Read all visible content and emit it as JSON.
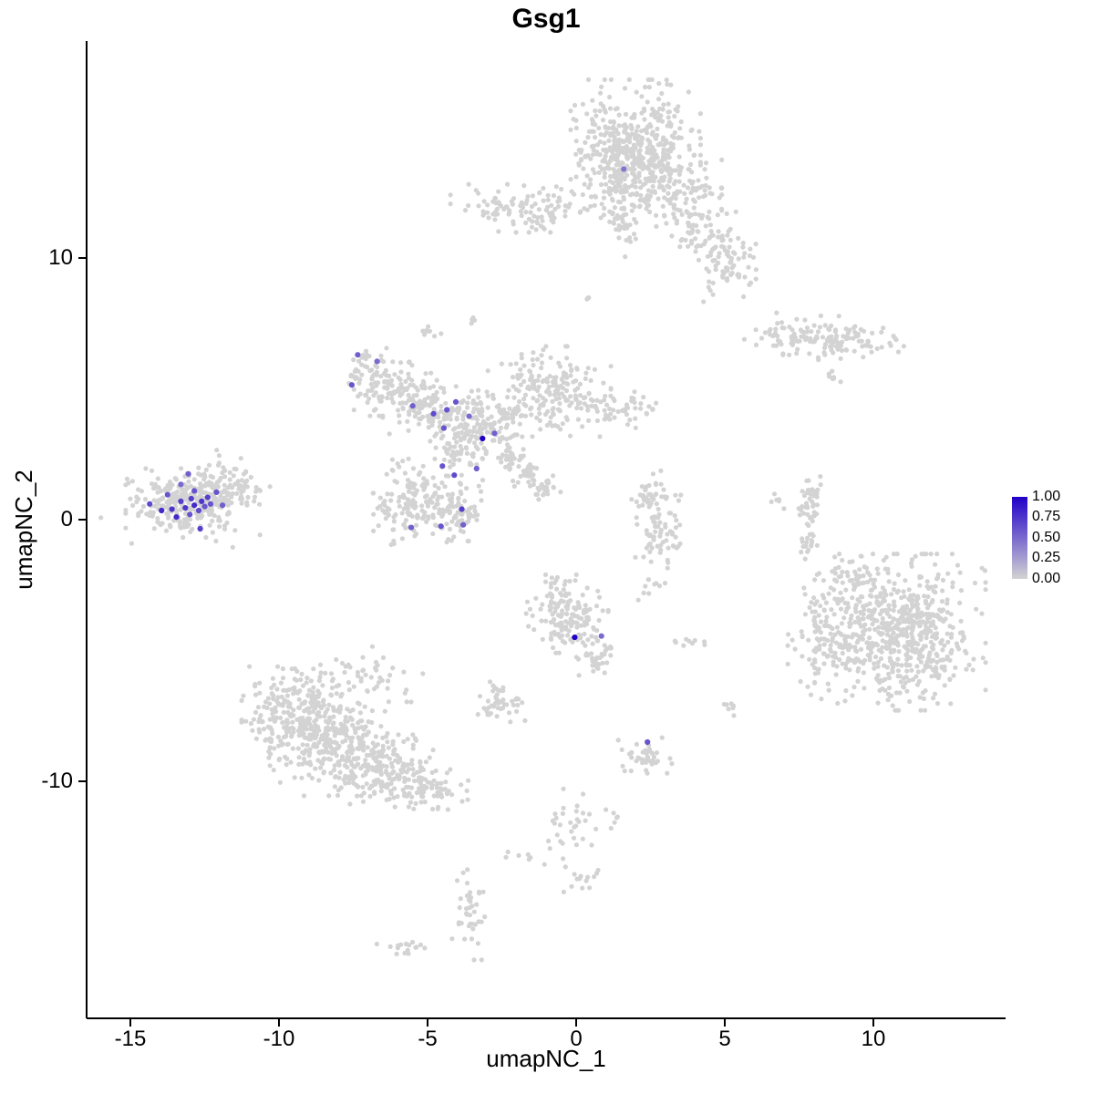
{
  "title": "Gsg1",
  "axes": {
    "x": {
      "label": "umapNC_1",
      "ticks": [
        -15,
        -10,
        -5,
        0,
        5,
        10
      ],
      "tick_labels": [
        "-15",
        "-10",
        "-5",
        "0",
        "5",
        "10"
      ],
      "range": [
        -16.5,
        14.4
      ]
    },
    "y": {
      "label": "umapNC_2",
      "ticks": [
        10,
        0,
        -10
      ],
      "tick_labels": [
        "10",
        "0",
        "-10"
      ],
      "range": [
        -19.1,
        18.3
      ]
    }
  },
  "legend": {
    "labels": [
      "1.00",
      "0.75",
      "0.50",
      "0.25",
      "0.00"
    ],
    "high_color": "#2100c8",
    "low_color": "#d3d3d3"
  },
  "chart_data": {
    "type": "scatter",
    "title": "Gsg1",
    "xlabel": "umapNC_1",
    "ylabel": "umapNC_2",
    "xlim": [
      -16.5,
      14.4
    ],
    "ylim": [
      -19.1,
      18.3
    ],
    "grid": false,
    "legend_position": "right",
    "base_point_color": "#d3d3d3",
    "high_color": "#2100c8",
    "point_radius": 2.6,
    "expressing_point_radius": 3.1,
    "clusters_note": "UMAP background cells approximated as gaussian blobs: cx,cy = cluster center in data coords; sx,sy = spread; n = cell count",
    "clusters": [
      {
        "cx": 2.0,
        "cy": 14.4,
        "sx": 0.95,
        "sy": 1.05,
        "n": 400
      },
      {
        "cx": 2.6,
        "cy": 12.7,
        "sx": 1.0,
        "sy": 0.65,
        "n": 160
      },
      {
        "cx": 4.3,
        "cy": 11.3,
        "sx": 0.5,
        "sy": 0.6,
        "n": 70
      },
      {
        "cx": 5.2,
        "cy": 9.9,
        "sx": 0.5,
        "sy": 0.6,
        "n": 65
      },
      {
        "cx": -1.7,
        "cy": 11.9,
        "sx": 1.1,
        "sy": 0.4,
        "n": 115
      },
      {
        "cx": 1.4,
        "cy": 12.8,
        "sx": 0.4,
        "sy": 0.7,
        "n": 50
      },
      {
        "cx": 1.7,
        "cy": 11.3,
        "sx": 0.25,
        "sy": 0.55,
        "n": 35
      },
      {
        "cx": 7.5,
        "cy": 7.1,
        "sx": 0.8,
        "sy": 0.35,
        "n": 80
      },
      {
        "cx": 9.3,
        "cy": 6.8,
        "sx": 0.75,
        "sy": 0.3,
        "n": 70
      },
      {
        "cx": 8.6,
        "cy": 5.4,
        "sx": 0.15,
        "sy": 0.12,
        "n": 7
      },
      {
        "cx": -7.0,
        "cy": 5.9,
        "sx": 0.35,
        "sy": 0.35,
        "n": 35
      },
      {
        "cx": -6.3,
        "cy": 5.0,
        "sx": 0.7,
        "sy": 0.45,
        "n": 105
      },
      {
        "cx": -4.9,
        "cy": 4.2,
        "sx": 0.7,
        "sy": 0.4,
        "n": 105
      },
      {
        "cx": -3.3,
        "cy": 3.6,
        "sx": 0.7,
        "sy": 0.65,
        "n": 145
      },
      {
        "cx": -0.9,
        "cy": 4.9,
        "sx": 0.9,
        "sy": 0.75,
        "n": 200
      },
      {
        "cx": 1.5,
        "cy": 4.2,
        "sx": 0.7,
        "sy": 0.3,
        "n": 50
      },
      {
        "cx": -2.2,
        "cy": 4.1,
        "sx": 0.3,
        "sy": 0.25,
        "n": 25
      },
      {
        "cx": -2.2,
        "cy": 2.3,
        "sx": 0.25,
        "sy": 0.25,
        "n": 28
      },
      {
        "cx": -1.65,
        "cy": 1.85,
        "sx": 0.25,
        "sy": 0.25,
        "n": 28
      },
      {
        "cx": -1.1,
        "cy": 1.35,
        "sx": 0.25,
        "sy": 0.25,
        "n": 24
      },
      {
        "cx": -4.1,
        "cy": 2.6,
        "sx": 0.3,
        "sy": 0.3,
        "n": 25
      },
      {
        "cx": -5.1,
        "cy": 0.6,
        "sx": 0.85,
        "sy": 0.75,
        "n": 185
      },
      {
        "cx": -3.9,
        "cy": 0.1,
        "sx": 0.4,
        "sy": 0.4,
        "n": 50
      },
      {
        "cx": -5.0,
        "cy": 7.2,
        "sx": 0.2,
        "sy": 0.15,
        "n": 8
      },
      {
        "cx": -13.2,
        "cy": 0.7,
        "sx": 0.85,
        "sy": 0.6,
        "n": 230
      },
      {
        "cx": -11.8,
        "cy": 1.2,
        "sx": 0.65,
        "sy": 0.5,
        "n": 85
      },
      {
        "cx": -13.0,
        "cy": 0.9,
        "sx": 1.3,
        "sy": 0.85,
        "n": 45
      },
      {
        "cx": 2.6,
        "cy": 1.0,
        "sx": 0.4,
        "sy": 0.4,
        "n": 45
      },
      {
        "cx": 2.8,
        "cy": -0.7,
        "sx": 0.35,
        "sy": 0.5,
        "n": 55
      },
      {
        "cx": 7.9,
        "cy": 0.7,
        "sx": 0.2,
        "sy": 0.45,
        "n": 40
      },
      {
        "cx": 7.8,
        "cy": -0.9,
        "sx": 0.15,
        "sy": 0.3,
        "n": 18
      },
      {
        "cx": 10.9,
        "cy": -4.3,
        "sx": 1.25,
        "sy": 1.3,
        "n": 620
      },
      {
        "cx": 8.5,
        "cy": -4.4,
        "sx": 0.6,
        "sy": 1.1,
        "n": 105
      },
      {
        "cx": 9.2,
        "cy": -2.3,
        "sx": 0.4,
        "sy": 0.4,
        "n": 35
      },
      {
        "cx": -0.3,
        "cy": -3.6,
        "sx": 0.6,
        "sy": 0.65,
        "n": 145
      },
      {
        "cx": 0.7,
        "cy": -5.0,
        "sx": 0.3,
        "sy": 0.5,
        "n": 45
      },
      {
        "cx": -2.5,
        "cy": -7.0,
        "sx": 0.35,
        "sy": 0.35,
        "n": 45
      },
      {
        "cx": -9.3,
        "cy": -7.3,
        "sx": 0.85,
        "sy": 0.8,
        "n": 250
      },
      {
        "cx": -8.0,
        "cy": -8.6,
        "sx": 1.0,
        "sy": 0.85,
        "n": 270
      },
      {
        "cx": -6.3,
        "cy": -9.6,
        "sx": 0.85,
        "sy": 0.6,
        "n": 165
      },
      {
        "cx": -4.9,
        "cy": -10.3,
        "sx": 0.6,
        "sy": 0.4,
        "n": 65
      },
      {
        "cx": -7.0,
        "cy": -6.0,
        "sx": 0.8,
        "sy": 0.5,
        "n": 45
      },
      {
        "cx": 2.3,
        "cy": -9.0,
        "sx": 0.4,
        "sy": 0.3,
        "n": 42
      },
      {
        "cx": -0.2,
        "cy": -11.7,
        "sx": 0.4,
        "sy": 1.1,
        "n": 32
      },
      {
        "cx": 0.2,
        "cy": -13.7,
        "sx": 0.3,
        "sy": 0.2,
        "n": 12
      },
      {
        "cx": -3.6,
        "cy": -15.1,
        "sx": 0.25,
        "sy": 0.75,
        "n": 40
      },
      {
        "cx": -5.9,
        "cy": -16.4,
        "sx": 0.35,
        "sy": 0.13,
        "n": 16
      },
      {
        "cx": 3.8,
        "cy": -4.7,
        "sx": 0.25,
        "sy": 0.2,
        "n": 9
      },
      {
        "cx": 5.2,
        "cy": -7.2,
        "sx": 0.2,
        "sy": 0.15,
        "n": 7
      },
      {
        "cx": 6.7,
        "cy": 0.9,
        "sx": 0.2,
        "sy": 0.3,
        "n": 6
      },
      {
        "cx": -3.4,
        "cy": 7.6,
        "sx": 0.15,
        "sy": 0.15,
        "n": 4
      },
      {
        "cx": 0.3,
        "cy": 8.5,
        "sx": 0.12,
        "sy": 0.12,
        "n": 3
      },
      {
        "cx": 2.3,
        "cy": -2.7,
        "sx": 0.3,
        "sy": 0.25,
        "n": 10
      },
      {
        "cx": 4.5,
        "cy": 8.7,
        "sx": 0.15,
        "sy": 0.3,
        "n": 5
      },
      {
        "cx": 1.0,
        "cy": -11.9,
        "sx": 0.3,
        "sy": 0.4,
        "n": 8
      },
      {
        "cx": -1.9,
        "cy": -12.9,
        "sx": 0.25,
        "sy": 0.2,
        "n": 6
      }
    ],
    "expressing_points_format": [
      "x",
      "y",
      "expression_value_0_to_1"
    ],
    "expressing_points": [
      [
        -14.35,
        0.6,
        0.65
      ],
      [
        -13.95,
        0.35,
        0.8
      ],
      [
        -13.75,
        0.95,
        0.6
      ],
      [
        -13.6,
        0.4,
        0.75
      ],
      [
        -13.45,
        0.1,
        0.8
      ],
      [
        -13.3,
        0.7,
        0.7
      ],
      [
        -13.15,
        0.45,
        0.75
      ],
      [
        -13.0,
        0.2,
        0.6
      ],
      [
        -12.95,
        0.8,
        0.7
      ],
      [
        -12.85,
        0.55,
        0.8
      ],
      [
        -12.7,
        0.35,
        0.65
      ],
      [
        -12.6,
        0.7,
        0.75
      ],
      [
        -12.5,
        0.5,
        0.6
      ],
      [
        -12.4,
        0.85,
        0.7
      ],
      [
        -12.3,
        0.6,
        0.6
      ],
      [
        -12.85,
        1.1,
        0.6
      ],
      [
        -13.05,
        1.75,
        0.55
      ],
      [
        -12.1,
        1.05,
        0.6
      ],
      [
        -12.65,
        -0.35,
        0.7
      ],
      [
        -13.3,
        1.35,
        0.5
      ],
      [
        -11.9,
        0.55,
        0.55
      ],
      [
        -7.35,
        6.3,
        0.55
      ],
      [
        -6.7,
        6.05,
        0.5
      ],
      [
        -7.55,
        5.15,
        0.6
      ],
      [
        -5.5,
        4.35,
        0.55
      ],
      [
        -4.8,
        4.05,
        0.65
      ],
      [
        -4.35,
        4.2,
        0.6
      ],
      [
        -4.05,
        4.5,
        0.6
      ],
      [
        -3.6,
        3.95,
        0.5
      ],
      [
        -4.45,
        3.5,
        0.6
      ],
      [
        -3.15,
        3.1,
        1.0
      ],
      [
        -2.75,
        3.3,
        0.55
      ],
      [
        -4.5,
        2.05,
        0.6
      ],
      [
        -4.1,
        1.7,
        0.65
      ],
      [
        -3.35,
        1.95,
        0.55
      ],
      [
        -5.55,
        -0.3,
        0.55
      ],
      [
        -4.55,
        -0.25,
        0.6
      ],
      [
        -3.85,
        0.4,
        0.7
      ],
      [
        -3.8,
        -0.2,
        0.55
      ],
      [
        1.6,
        13.4,
        0.45
      ],
      [
        -0.05,
        -4.5,
        1.0
      ],
      [
        0.85,
        -4.45,
        0.5
      ],
      [
        2.4,
        -8.5,
        0.6
      ]
    ]
  }
}
